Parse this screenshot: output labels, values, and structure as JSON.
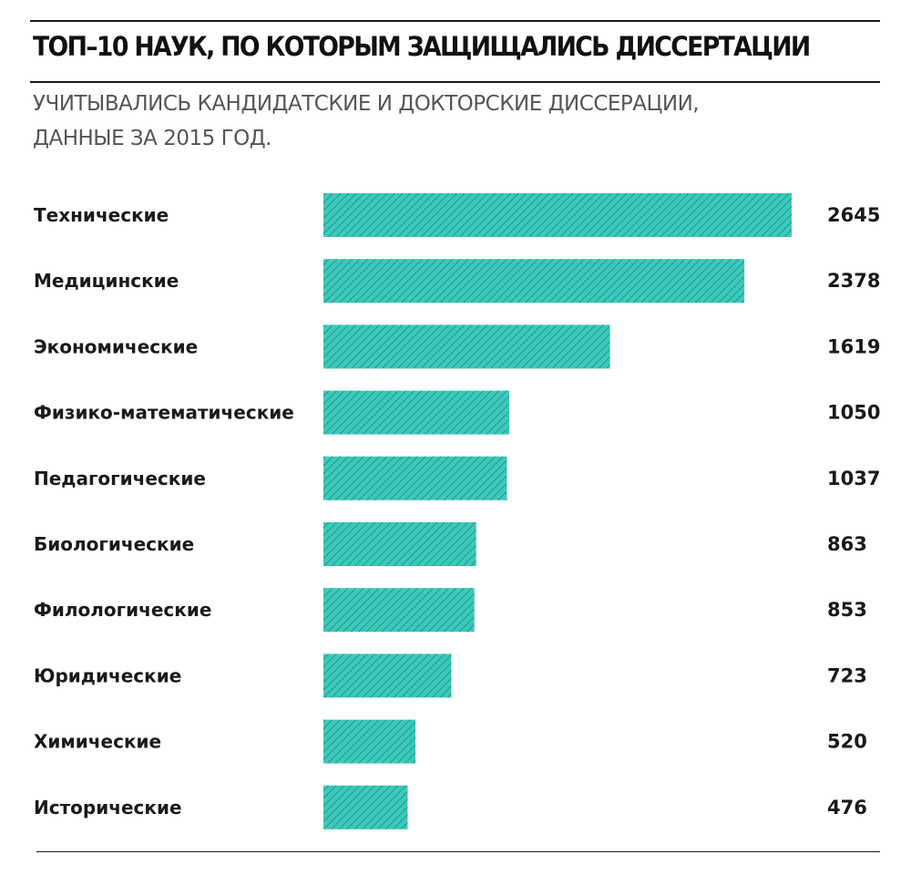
{
  "chart_data": {
    "type": "bar",
    "orientation": "horizontal",
    "title": "ТОП–10 НАУК, ПО КОТОРЫМ ЗАЩИЩАЛИСЬ ДИССЕРТАЦИИ",
    "subtitle_lines": [
      "УЧИТЫВАЛИСЬ КАНДИДАТСКИЕ И ДОКТОРСКИЕ ДИССЕРАЦИИ,",
      "ДАННЫЕ ЗА 2015 ГОД."
    ],
    "categories": [
      "Технические",
      "Медицинские",
      "Экономические",
      "Физико-математические",
      "Педагогические",
      "Биологические",
      "Филологические",
      "Юридические",
      "Химические",
      "Исторические"
    ],
    "values": [
      2645,
      2378,
      1619,
      1050,
      1037,
      863,
      853,
      723,
      520,
      476
    ],
    "data_labels": [
      "2645",
      "2378",
      "1619",
      "1050",
      "1037",
      "863",
      "853",
      "723",
      "520",
      "476"
    ],
    "xlim": [
      0,
      2645
    ],
    "grid": false,
    "legend": "none",
    "colors": {
      "bar_fill": "#3cc9bb",
      "bar_stripe": "#23968b",
      "text": "#1a1a1a",
      "subtitle": "#555555",
      "rule": "#1a1a1a"
    }
  }
}
